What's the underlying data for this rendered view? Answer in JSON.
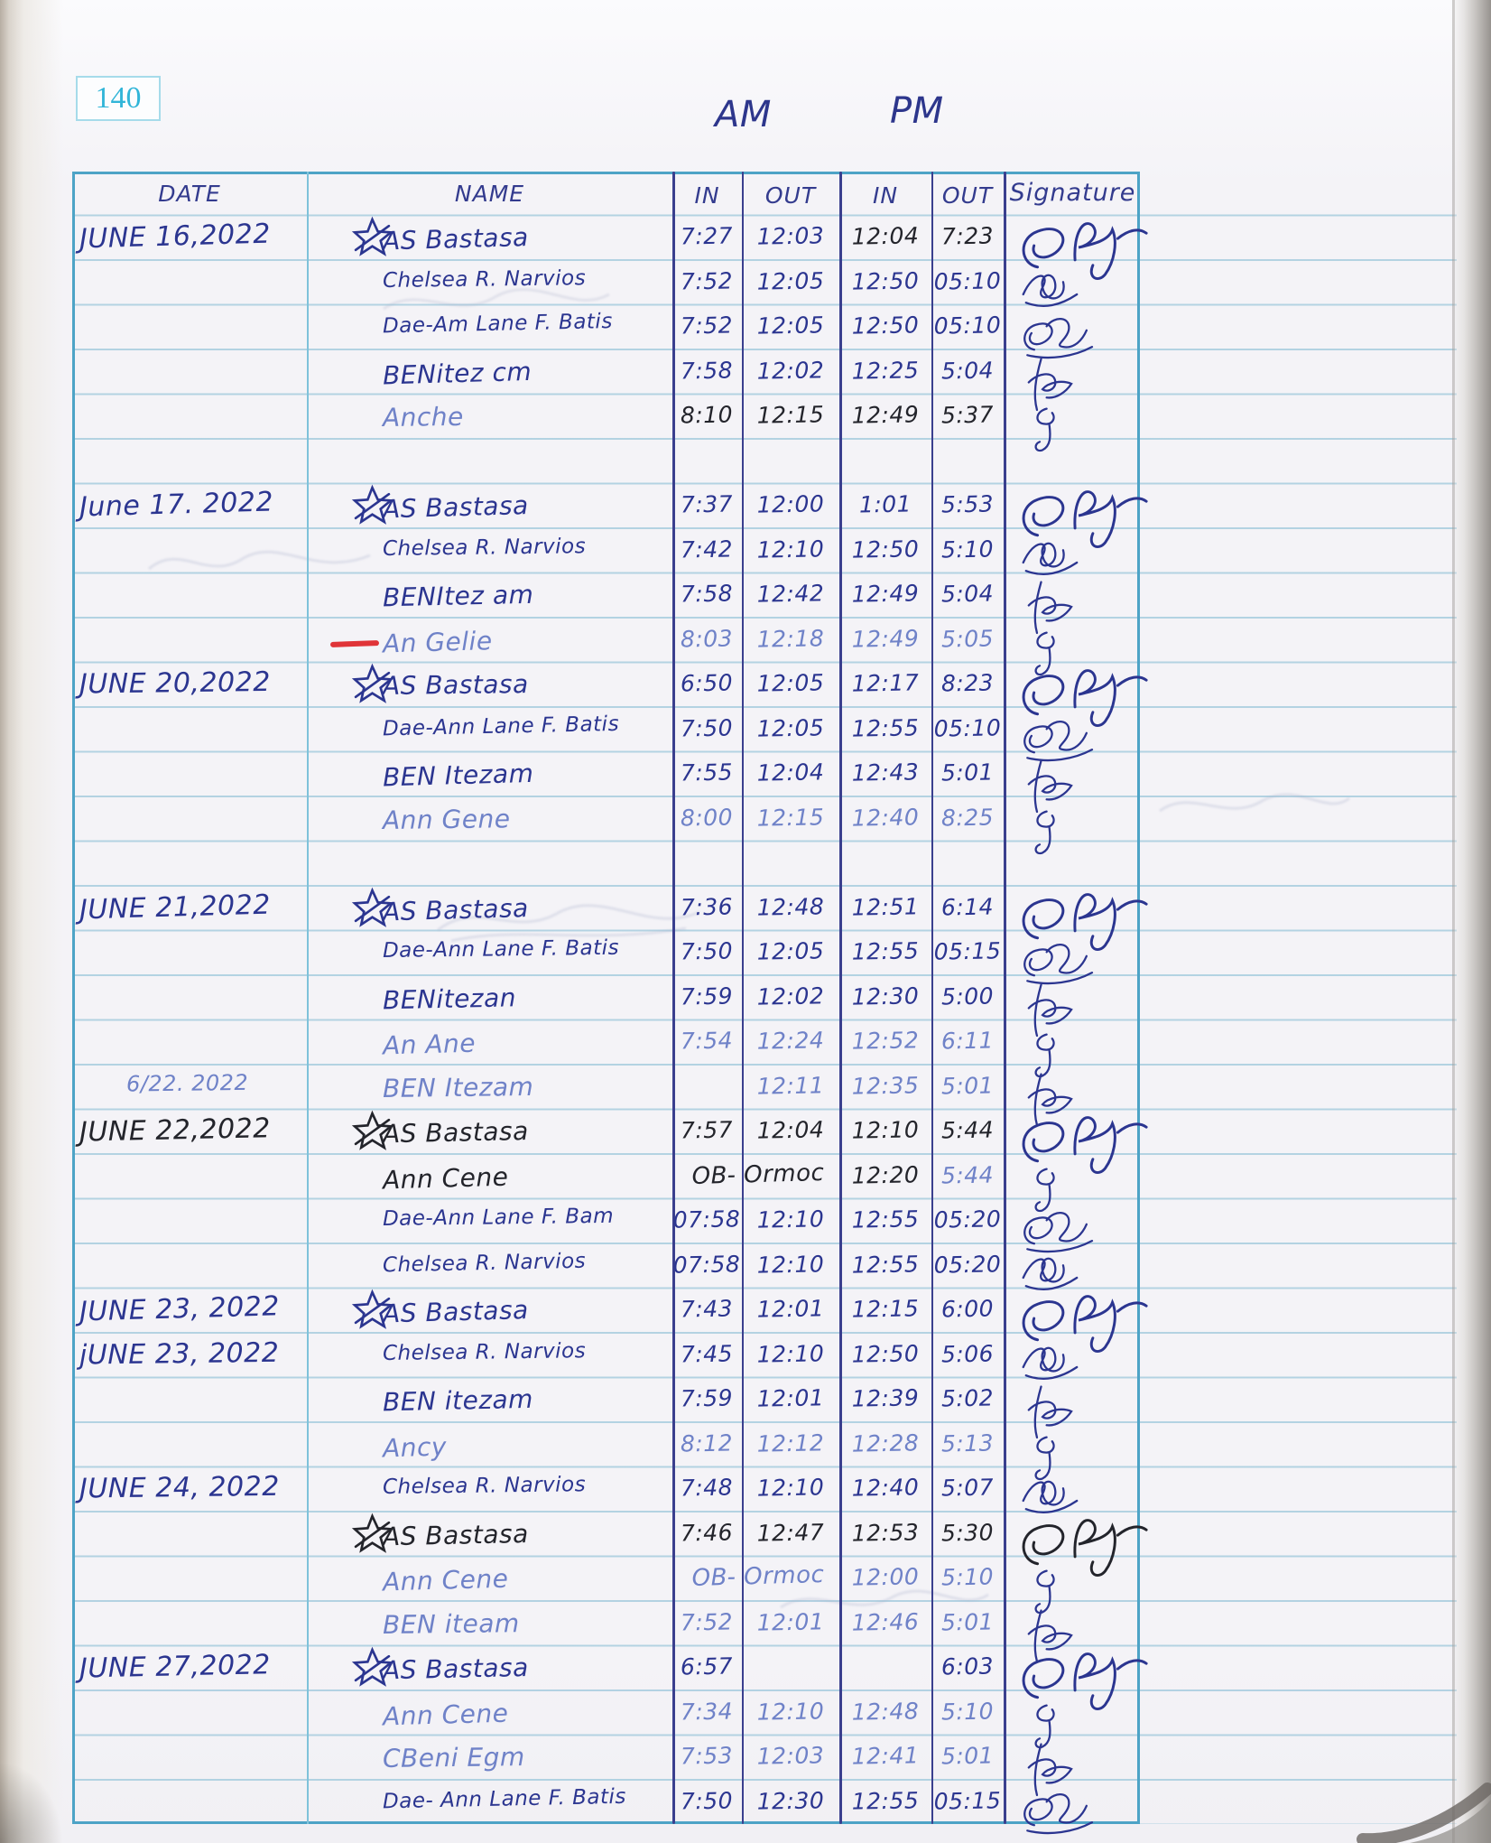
{
  "page_number": "140",
  "section_labels": {
    "am": "AM",
    "pm": "PM"
  },
  "table_headers": {
    "date": "DATE",
    "name": "NAME",
    "am_in": "IN",
    "am_out": "OUT",
    "pm_in": "IN",
    "pm_out": "OUT",
    "signature": "Signature"
  },
  "ink_colors": {
    "blue": "#2b3590",
    "black": "#23242b",
    "light": "#6f82c8",
    "red": "#e03438",
    "teal": "#31b5d8"
  },
  "entries": [
    {
      "row": 0,
      "date": "JUNE 16,2022",
      "name": "AS Bastasa",
      "star": true,
      "am_in": "7:27",
      "am_out": "12:03",
      "pm_in": "12:04",
      "pm_out": "7:23",
      "ink": "blue",
      "field_inks": {
        "pm_in": "black",
        "pm_out": "black"
      },
      "sig": "cb"
    },
    {
      "row": 1,
      "name": "Chelsea R. Narvios",
      "am_in": "7:52",
      "am_out": "12:05",
      "pm_in": "12:50",
      "pm_out": "05:10",
      "ink": "blue",
      "sig": "scrib"
    },
    {
      "row": 2,
      "name": "Dae-Am Lane F. Batis",
      "am_in": "7:52",
      "am_out": "12:05",
      "pm_in": "12:50",
      "pm_out": "05:10",
      "ink": "blue",
      "sig": "bb"
    },
    {
      "row": 3,
      "name": "BENitez cm",
      "am_in": "7:58",
      "am_out": "12:02",
      "pm_in": "12:25",
      "pm_out": "5:04",
      "ink": "blue",
      "sig": "jl"
    },
    {
      "row": 4,
      "name": "Anche",
      "am_in": "8:10",
      "am_out": "12:15",
      "pm_in": "12:49",
      "pm_out": "5:37",
      "ink": "light",
      "time_ink": "black",
      "sig": "cj"
    },
    {
      "row": 6,
      "date": "June 17. 2022",
      "name": "AS Bastasa",
      "star": true,
      "am_in": "7:37",
      "am_out": "12:00",
      "pm_in": "1:01",
      "pm_out": "5:53",
      "ink": "blue",
      "sig": "cb"
    },
    {
      "row": 7,
      "name": "Chelsea R. Narvios",
      "am_in": "7:42",
      "am_out": "12:10",
      "pm_in": "12:50",
      "pm_out": "5:10",
      "ink": "blue",
      "sig": "scrib"
    },
    {
      "row": 8,
      "name": "BENItez am",
      "am_in": "7:58",
      "am_out": "12:42",
      "pm_in": "12:49",
      "pm_out": "5:04",
      "ink": "blue",
      "sig": "jl"
    },
    {
      "row": 9,
      "name": "An Gelie",
      "red_mark": true,
      "am_in": "8:03",
      "am_out": "12:18",
      "pm_in": "12:49",
      "pm_out": "5:05",
      "ink": "light",
      "sig": "cj"
    },
    {
      "row": 10,
      "date": "JUNE 20,2022",
      "name": "AS Bastasa",
      "star": true,
      "am_in": "6:50",
      "am_out": "12:05",
      "pm_in": "12:17",
      "pm_out": "8:23",
      "ink": "blue",
      "sig": "cb"
    },
    {
      "row": 11,
      "name": "Dae-Ann Lane F. Batis",
      "am_in": "7:50",
      "am_out": "12:05",
      "pm_in": "12:55",
      "pm_out": "05:10",
      "ink": "blue",
      "sig": "bb"
    },
    {
      "row": 12,
      "name": "BEN Itezam",
      "am_in": "7:55",
      "am_out": "12:04",
      "pm_in": "12:43",
      "pm_out": "5:01",
      "ink": "blue",
      "sig": "jl"
    },
    {
      "row": 13,
      "name": "Ann Gene",
      "am_in": "8:00",
      "am_out": "12:15",
      "pm_in": "12:40",
      "pm_out": "8:25",
      "ink": "light",
      "sig": "cj"
    },
    {
      "row": 15,
      "date": "JUNE 21,2022",
      "name": "AS Bastasa",
      "star": true,
      "am_in": "7:36",
      "am_out": "12:48",
      "pm_in": "12:51",
      "pm_out": "6:14",
      "ink": "blue",
      "sig": "cb"
    },
    {
      "row": 16,
      "name": "Dae-Ann Lane F. Batis",
      "am_in": "7:50",
      "am_out": "12:05",
      "pm_in": "12:55",
      "pm_out": "05:15",
      "ink": "blue",
      "sig": "bb"
    },
    {
      "row": 17,
      "name": "BENitezan",
      "am_in": "7:59",
      "am_out": "12:02",
      "pm_in": "12:30",
      "pm_out": "5:00",
      "ink": "blue",
      "sig": "jl"
    },
    {
      "row": 18,
      "name": "An Ane",
      "am_in": "7:54",
      "am_out": "12:24",
      "pm_in": "12:52",
      "pm_out": "6:11",
      "ink": "light",
      "sig": "cj"
    },
    {
      "row": 19,
      "date": "6/22. 2022",
      "small_date": true,
      "name": "BEN Itezam",
      "am_in": "",
      "am_out": "12:11",
      "pm_in": "12:35",
      "pm_out": "5:01",
      "ink": "light",
      "sig": "jl"
    },
    {
      "row": 20,
      "date": "JUNE 22,2022",
      "name": "AS Bastasa",
      "star": true,
      "am_in": "7:57",
      "am_out": "12:04",
      "pm_in": "12:10",
      "pm_out": "5:44",
      "ink": "black",
      "sig": "cb"
    },
    {
      "row": 21,
      "name": "Ann Cene",
      "am_note": "OB- Ormoc",
      "pm_in": "12:20",
      "pm_out": "5:44",
      "ink": "black",
      "field_inks": {
        "pm_out": "light"
      },
      "sig": "cj"
    },
    {
      "row": 22,
      "name": "Dae-Ann Lane F. Bam",
      "am_in": "07:58",
      "am_out": "12:10",
      "pm_in": "12:55",
      "pm_out": "05:20",
      "ink": "blue",
      "sig": "bb"
    },
    {
      "row": 23,
      "name": "Chelsea R. Narvios",
      "am_in": "07:58",
      "am_out": "12:10",
      "pm_in": "12:55",
      "pm_out": "05:20",
      "ink": "blue",
      "sig": "scrib"
    },
    {
      "row": 24,
      "date": "JUNE 23, 2022",
      "name": "AS Bastasa",
      "star": true,
      "am_in": "7:43",
      "am_out": "12:01",
      "pm_in": "12:15",
      "pm_out": "6:00",
      "ink": "blue",
      "sig": "cb"
    },
    {
      "row": 25,
      "date": "jUNE 23, 2022",
      "name": "Chelsea R. Narvios",
      "am_in": "7:45",
      "am_out": "12:10",
      "pm_in": "12:50",
      "pm_out": "5:06",
      "ink": "blue",
      "sig": "scrib"
    },
    {
      "row": 26,
      "name": "BEN itezam",
      "am_in": "7:59",
      "am_out": "12:01",
      "pm_in": "12:39",
      "pm_out": "5:02",
      "ink": "blue",
      "sig": "jl"
    },
    {
      "row": 27,
      "name": "Ancy",
      "am_in": "8:12",
      "am_out": "12:12",
      "pm_in": "12:28",
      "pm_out": "5:13",
      "ink": "light",
      "sig": "cj"
    },
    {
      "row": 28,
      "date": "JUNE 24, 2022",
      "name": "Chelsea R. Narvios",
      "am_in": "7:48",
      "am_out": "12:10",
      "pm_in": "12:40",
      "pm_out": "5:07",
      "ink": "blue",
      "sig": "scrib"
    },
    {
      "row": 29,
      "name": "AS Bastasa",
      "star": true,
      "am_in": "7:46",
      "am_out": "12:47",
      "pm_in": "12:53",
      "pm_out": "5:30",
      "ink": "black",
      "sig": "cb",
      "sig_ink": "black"
    },
    {
      "row": 30,
      "name": "Ann Cene",
      "am_note": "OB- Ormoc",
      "pm_in": "12:00",
      "pm_out": "5:10",
      "ink": "light",
      "sig": "cj"
    },
    {
      "row": 31,
      "name": "BEN iteam",
      "am_in": "7:52",
      "am_out": "12:01",
      "pm_in": "12:46",
      "pm_out": "5:01",
      "ink": "light",
      "sig": "jl"
    },
    {
      "row": 32,
      "date": "JUNE 27,2022",
      "name": "AS Bastasa",
      "star": true,
      "am_in": "6:57",
      "am_out": "",
      "pm_in": "",
      "pm_out": "6:03",
      "ink": "blue",
      "sig": "cb"
    },
    {
      "row": 33,
      "name": "Ann Cene",
      "am_in": "7:34",
      "am_out": "12:10",
      "pm_in": "12:48",
      "pm_out": "5:10",
      "ink": "light",
      "sig": "cj"
    },
    {
      "row": 34,
      "name": "CBeni Egm",
      "am_in": "7:53",
      "am_out": "12:03",
      "pm_in": "12:41",
      "pm_out": "5:01",
      "ink": "light",
      "sig": "jl"
    },
    {
      "row": 35,
      "name": "Dae- Ann Lane F. Batis",
      "am_in": "7:50",
      "am_out": "12:30",
      "pm_in": "12:55",
      "pm_out": "05:15",
      "ink": "blue",
      "sig": "bb"
    }
  ]
}
